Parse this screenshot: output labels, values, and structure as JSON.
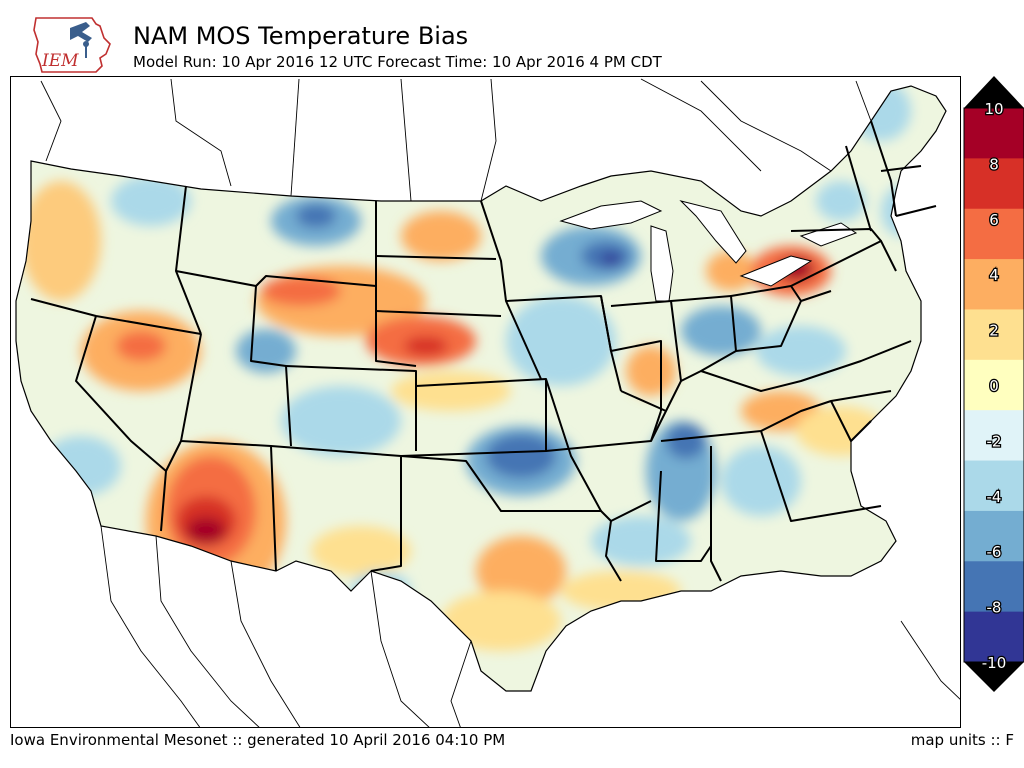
{
  "header": {
    "logo_text": "IEM",
    "title": "NAM MOS Temperature Bias",
    "subtitle": "Model Run: 10 Apr 2016 12 UTC Forecast Time: 10 Apr 2016 4 PM CDT"
  },
  "footer": {
    "left": "Iowa Environmental Mesonet :: generated 10 April 2016 04:10 PM",
    "right": "map units :: F"
  },
  "legend": {
    "ticks": [
      "10",
      "8",
      "6",
      "4",
      "2",
      "0",
      "-2",
      "-4",
      "-6",
      "-8",
      "-10"
    ],
    "colors": [
      "#a50026",
      "#d73027",
      "#f46d43",
      "#fdae61",
      "#fee090",
      "#ffffbf",
      "#e0f3f8",
      "#abd9e9",
      "#74add1",
      "#4575b4",
      "#313695"
    ],
    "over_color": "#000000",
    "under_color": "#000000"
  }
}
